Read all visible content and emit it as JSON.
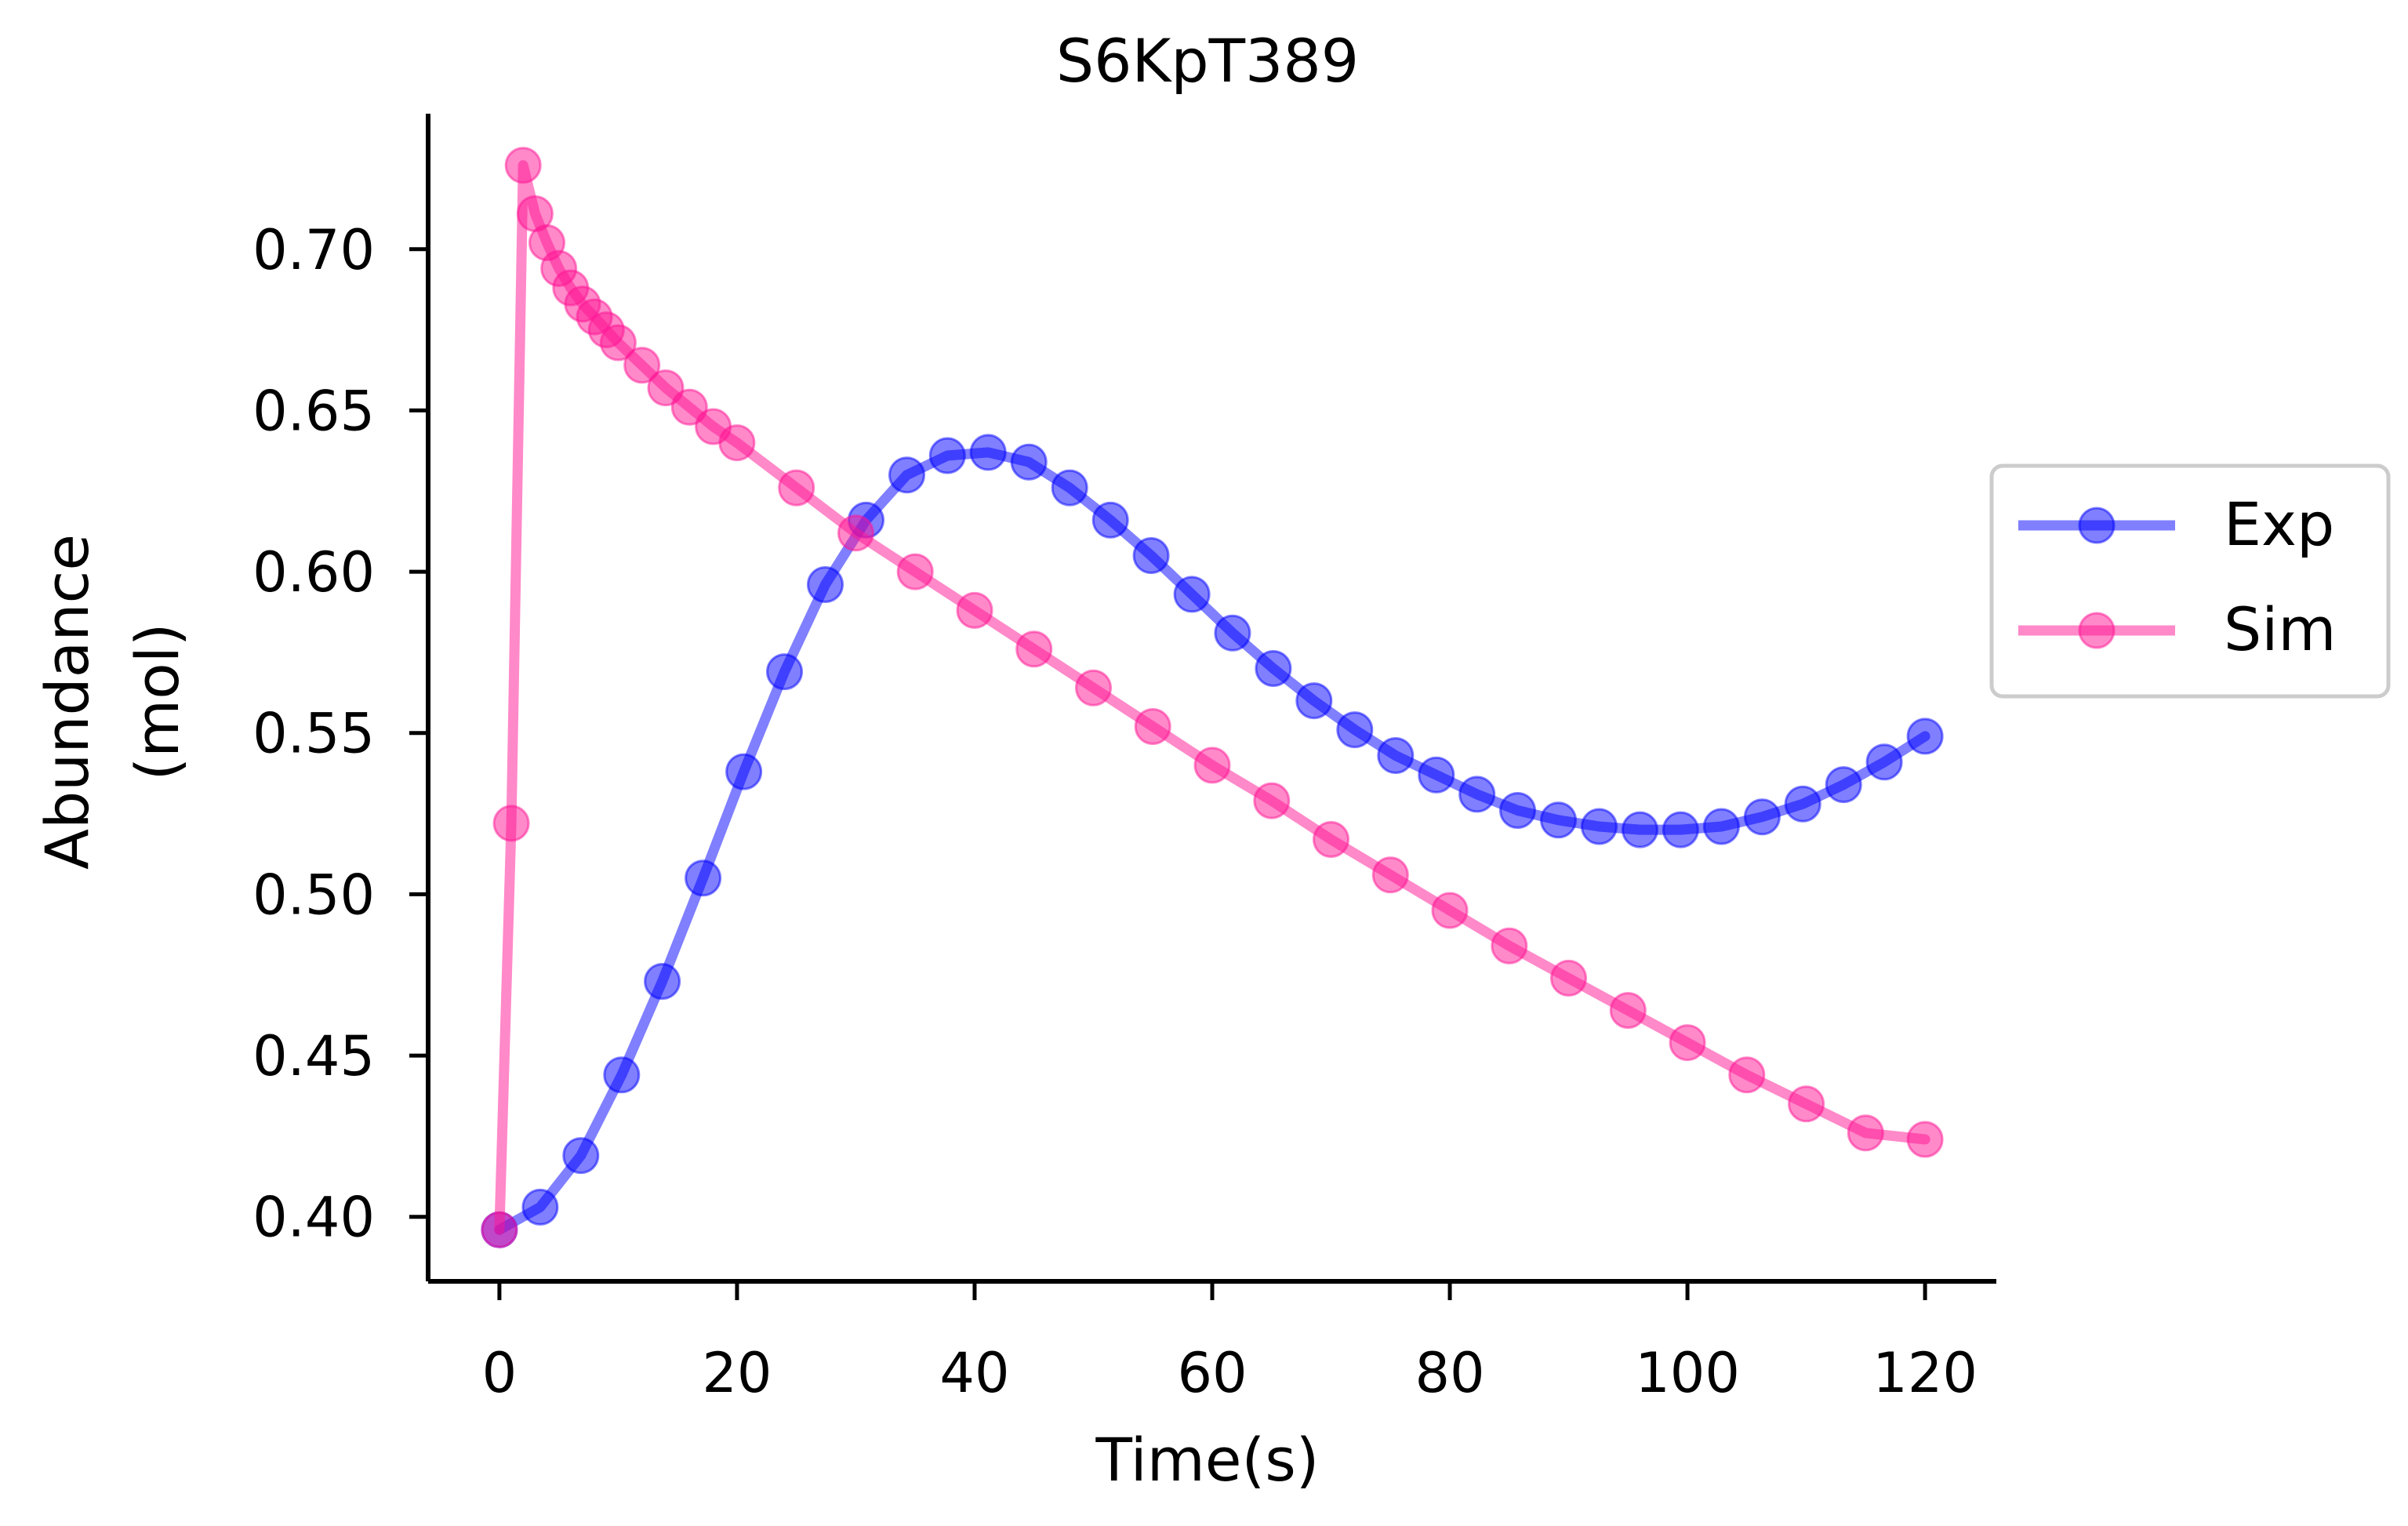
{
  "chart_data": {
    "type": "line",
    "title": "S6KpT389",
    "xlabel": "Time(s)",
    "ylabel_lines": [
      "Abundance",
      "(mol)"
    ],
    "xlim": [
      -6,
      126
    ],
    "ylim": [
      0.38,
      0.742
    ],
    "xticks": [
      0,
      20,
      40,
      60,
      80,
      100,
      120
    ],
    "yticks": [
      0.4,
      0.45,
      0.5,
      0.55,
      0.6,
      0.65,
      0.7
    ],
    "xtick_labels": [
      "0",
      "20",
      "40",
      "60",
      "80",
      "100",
      "120"
    ],
    "ytick_labels": [
      "0.40",
      "0.45",
      "0.50",
      "0.55",
      "0.60",
      "0.65",
      "0.70"
    ],
    "legend_position": "center-right-outside",
    "grid": false,
    "series": [
      {
        "name": "Exp",
        "color": "#0000ff",
        "x": [
          0,
          3.43,
          6.86,
          10.29,
          13.71,
          17.14,
          20.57,
          24,
          27.43,
          30.86,
          34.29,
          37.71,
          41.14,
          44.57,
          48,
          51.43,
          54.86,
          58.29,
          61.71,
          65.14,
          68.57,
          72,
          75.43,
          78.86,
          82.29,
          85.71,
          89.14,
          92.57,
          96,
          99.43,
          102.86,
          106.29,
          109.71,
          113.14,
          116.57,
          120
        ],
        "y": [
          0.396,
          0.403,
          0.419,
          0.444,
          0.473,
          0.505,
          0.538,
          0.569,
          0.596,
          0.616,
          0.63,
          0.636,
          0.637,
          0.634,
          0.626,
          0.616,
          0.605,
          0.593,
          0.581,
          0.57,
          0.56,
          0.551,
          0.543,
          0.537,
          0.531,
          0.526,
          0.523,
          0.521,
          0.52,
          0.52,
          0.521,
          0.524,
          0.528,
          0.534,
          0.541,
          0.549
        ]
      },
      {
        "name": "Sim",
        "color": "#ff1493",
        "x": [
          0,
          1,
          2,
          3,
          4,
          5,
          6,
          7,
          8,
          9,
          10,
          12,
          14,
          16,
          18,
          20,
          25,
          30,
          35,
          40,
          45,
          50,
          55,
          60,
          65,
          70,
          75,
          80,
          85,
          90,
          95,
          100,
          105,
          110,
          115,
          120
        ],
        "y": [
          0.396,
          0.522,
          0.726,
          0.711,
          0.702,
          0.694,
          0.688,
          0.683,
          0.679,
          0.675,
          0.671,
          0.664,
          0.657,
          0.651,
          0.645,
          0.64,
          0.626,
          0.612,
          0.6,
          0.588,
          0.576,
          0.564,
          0.552,
          0.54,
          0.529,
          0.517,
          0.506,
          0.495,
          0.484,
          0.474,
          0.464,
          0.454,
          0.444,
          0.435,
          0.426,
          0.424
        ]
      }
    ]
  }
}
